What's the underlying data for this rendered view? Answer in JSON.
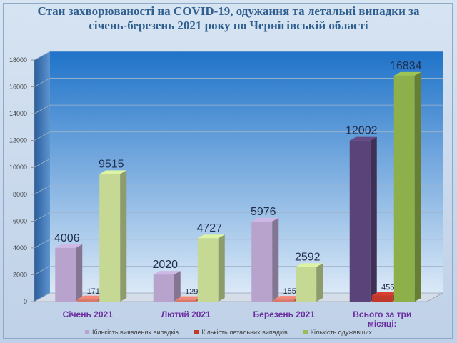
{
  "chart_data": {
    "type": "bar",
    "title_line1": "Стан захворюваності на COVID-19, одужання та летальні випадки за",
    "title_line2": "січень-березень 2021 року по Чернігівській області",
    "categories": [
      [
        "Січень 2021"
      ],
      [
        "Лютий 2021"
      ],
      [
        "Березень 2021"
      ],
      [
        "Всього за три",
        "місяці:"
      ]
    ],
    "series": [
      {
        "name": "Кількість виявлених випадків",
        "values": [
          4006,
          2020,
          5976,
          12002
        ],
        "color": "#b8a3cc"
      },
      {
        "name": "Кількість летальних випадків",
        "values": [
          171,
          129,
          155,
          455
        ],
        "color": "#d9796b"
      },
      {
        "name": "Кількість одужавших",
        "values": [
          9515,
          4727,
          2592,
          16834
        ],
        "color": "#c5d994"
      }
    ],
    "total_colors": [
      "#5a4378",
      "#c0392b",
      "#8db04a"
    ],
    "ylim": [
      0,
      18000
    ],
    "yticks": [
      0,
      2000,
      4000,
      6000,
      8000,
      10000,
      12000,
      14000,
      16000,
      18000
    ],
    "grid": true,
    "legend_position": "bottom"
  }
}
